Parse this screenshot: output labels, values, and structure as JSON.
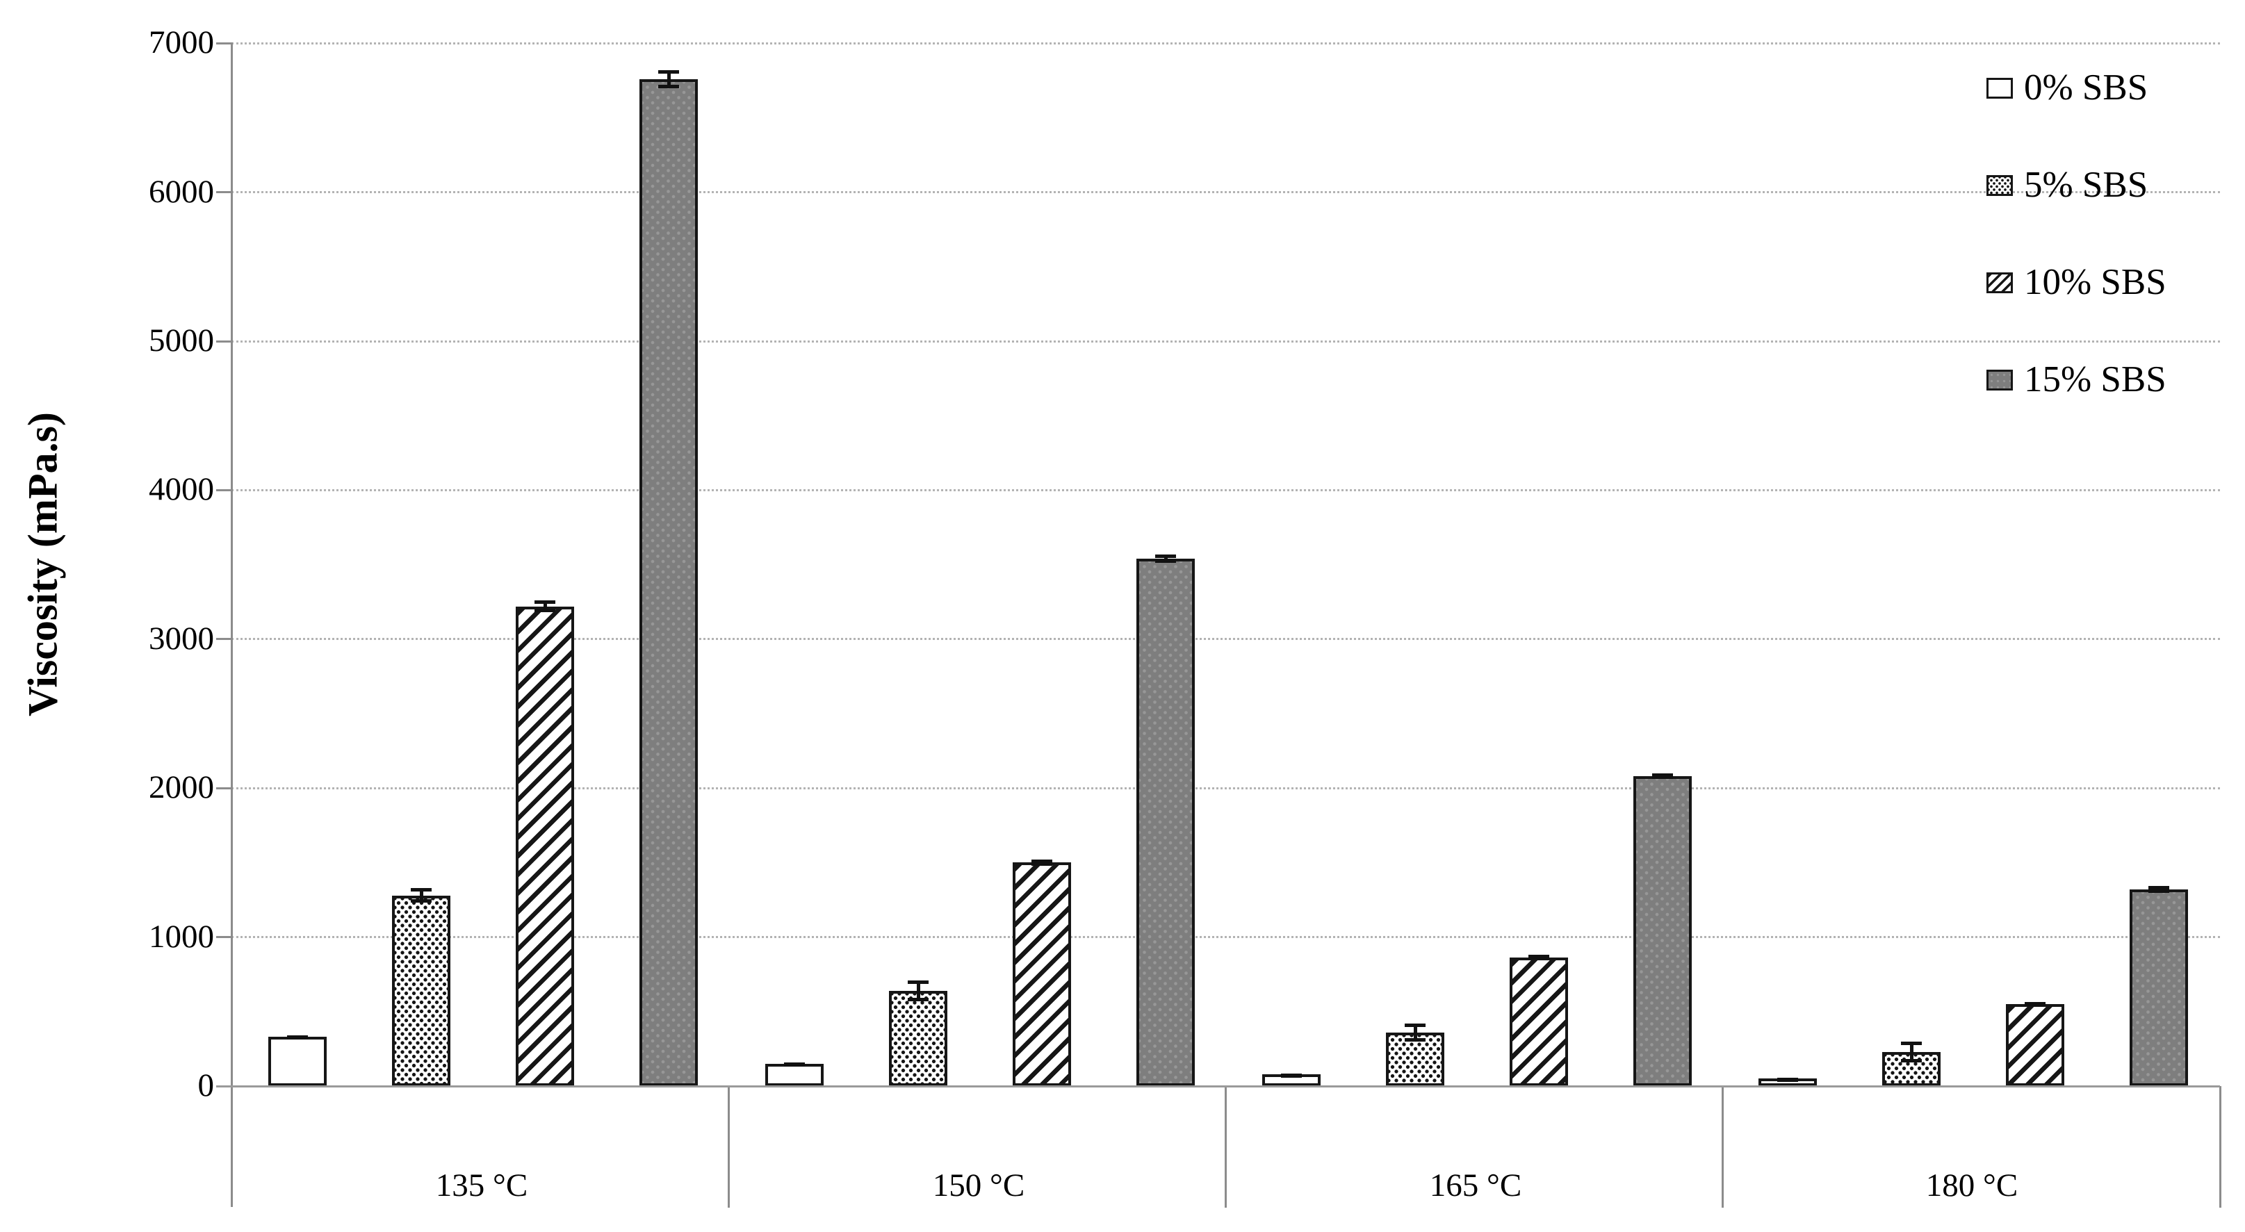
{
  "page": {
    "background": "#ffffff"
  },
  "chart_data": {
    "type": "bar",
    "title": "",
    "xlabel": "",
    "ylabel": "Viscosity (mPa.s)",
    "categories": [
      "135 °C",
      "150 °C",
      "165 °C",
      "180 °C"
    ],
    "series": [
      {
        "name": "0% SBS",
        "pattern": "plain",
        "values": [
          330,
          150,
          80,
          50
        ],
        "errors": [
          12,
          8,
          6,
          6
        ]
      },
      {
        "name": "5% SBS",
        "pattern": "dots",
        "values": [
          1280,
          640,
          360,
          230
        ],
        "errors": [
          50,
          70,
          60,
          70
        ]
      },
      {
        "name": "10% SBS",
        "pattern": "hatch",
        "values": [
          3220,
          1500,
          865,
          550
        ],
        "errors": [
          40,
          20,
          15,
          15
        ]
      },
      {
        "name": "15% SBS",
        "pattern": "gray",
        "values": [
          6760,
          3540,
          2080,
          1320
        ],
        "errors": [
          60,
          30,
          20,
          25
        ]
      }
    ],
    "ylim": [
      0,
      7000
    ],
    "ytick_step": 1000,
    "grid": "horizontal-dotted",
    "legend_position": "upper-right",
    "error_bars": true,
    "colors": {
      "bar_border": "#161616",
      "gray_fill": "#7e7e7e",
      "grid": "#b3b3b3",
      "axis": "#8c8c8c",
      "text": "#000000"
    }
  }
}
